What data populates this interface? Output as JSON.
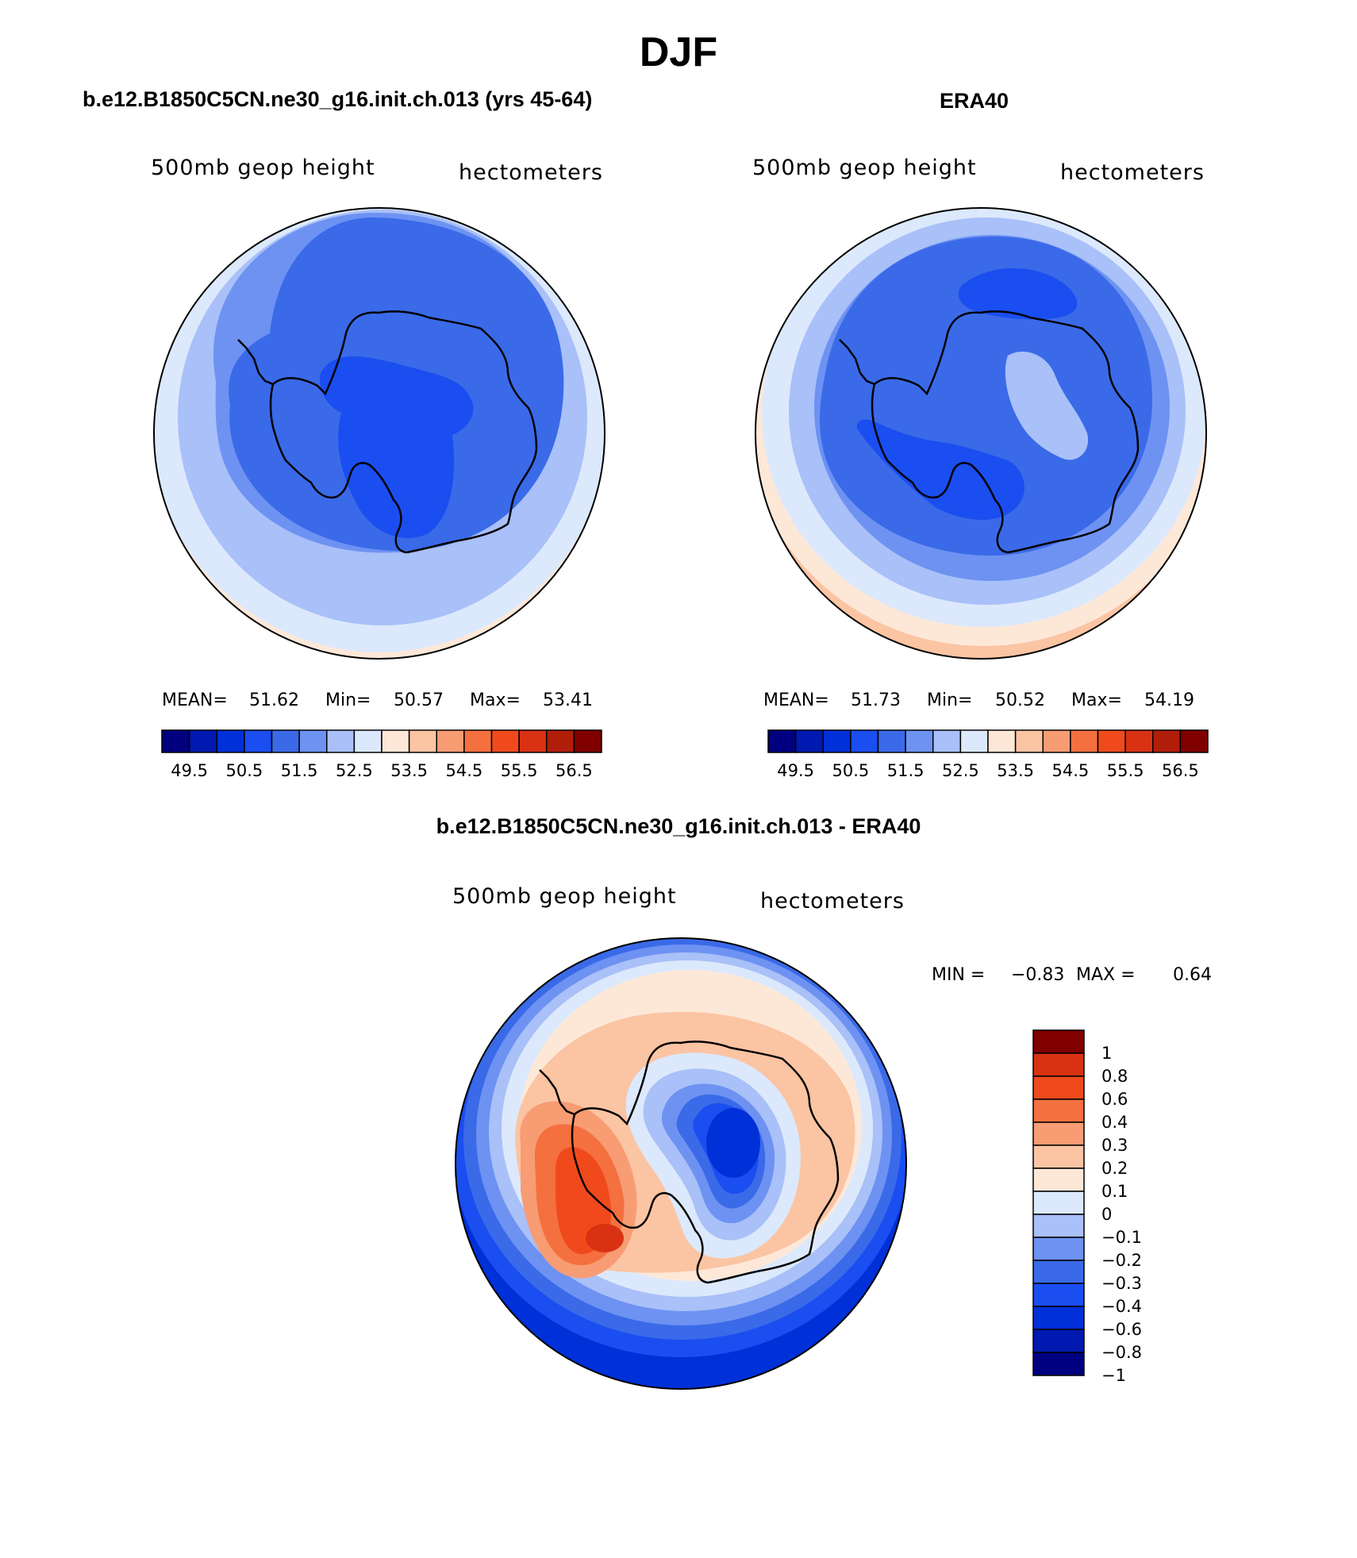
{
  "figure": {
    "title": "DJF"
  },
  "panels": [
    {
      "title": "b.e12.B1850C5CN.ne30_g16.init.ch.013 (yrs 45-64)",
      "variable": "500mb geop height",
      "units": "hectometers",
      "stats": {
        "mean_label": "MEAN=",
        "mean": "51.62",
        "min_label": "Min=",
        "min": "50.57",
        "max_label": "Max=",
        "max": "53.41"
      }
    },
    {
      "title": "ERA40",
      "variable": "500mb geop height",
      "units": "hectometers",
      "stats": {
        "mean_label": "MEAN=",
        "mean": "51.73",
        "min_label": "Min=",
        "min": "50.52",
        "max_label": "Max=",
        "max": "54.19"
      }
    },
    {
      "title": "b.e12.B1850C5CN.ne30_g16.init.ch.013 - ERA40",
      "variable": "500mb geop height",
      "units": "hectometers",
      "stats": {
        "min_label": "MIN =",
        "min": "−0.83",
        "max_label": "MAX =",
        "max": "0.64"
      }
    }
  ],
  "colorbar_abs": {
    "colors": [
      "#000080",
      "#0019b0",
      "#0030d8",
      "#1a4ef0",
      "#3a6ae8",
      "#6d92f2",
      "#a9c0f8",
      "#dce9fc",
      "#fde8d8",
      "#fbc4a3",
      "#f89c74",
      "#f4703f",
      "#f04a1c",
      "#d93212",
      "#b01e0a",
      "#800000"
    ],
    "tick_labels": [
      "49.5",
      "50.5",
      "51.5",
      "52.5",
      "53.5",
      "54.5",
      "55.5",
      "56.5"
    ]
  },
  "colorbar_diff": {
    "colors": [
      "#000080",
      "#0019b0",
      "#0030d8",
      "#1a4ef0",
      "#3a6ae8",
      "#6d92f2",
      "#a9c0f8",
      "#dce9fc",
      "#fde8d8",
      "#fbc4a3",
      "#f89c74",
      "#f4703f",
      "#f04a1c",
      "#d93212",
      "#800000"
    ],
    "tick_labels": [
      "1",
      "0.8",
      "0.6",
      "0.4",
      "0.3",
      "0.2",
      "0.1",
      "0",
      "−0.1",
      "−0.2",
      "−0.3",
      "−0.4",
      "−0.6",
      "−0.8",
      "−1"
    ]
  }
}
